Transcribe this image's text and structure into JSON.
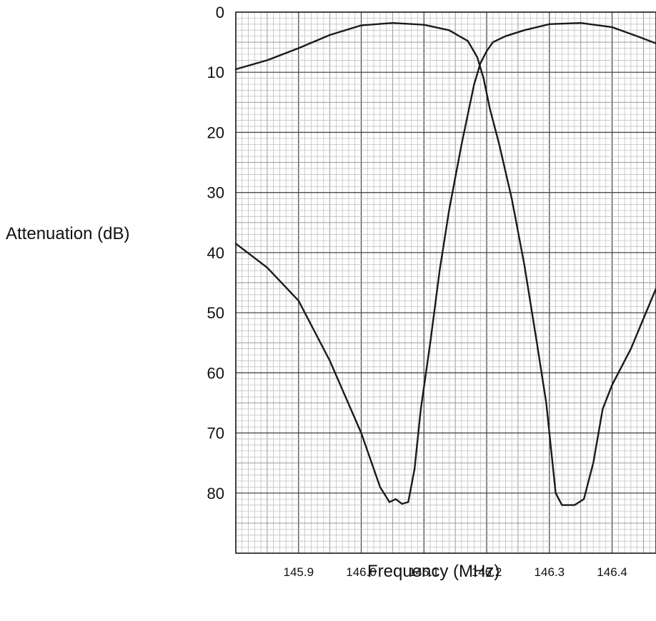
{
  "chart_data": {
    "type": "line",
    "title": "",
    "xlabel": "Frequency (MHz)",
    "ylabel": "Attenuation (dB)",
    "xlim": [
      145.8,
      146.47
    ],
    "ylim": [
      0,
      90
    ],
    "y_inverted": true,
    "grid": true,
    "legend": "none",
    "x_ticks": [
      "145.9",
      "146.0",
      "146.1",
      "146.2",
      "146.3",
      "146.4"
    ],
    "y_ticks": [
      "0",
      "10",
      "20",
      "30",
      "40",
      "50",
      "60",
      "70",
      "80"
    ],
    "series": [
      {
        "points": [
          [
            145.8,
            9.5
          ],
          [
            145.85,
            8.0
          ],
          [
            145.9,
            6.0
          ],
          [
            145.95,
            3.8
          ],
          [
            146.0,
            2.2
          ],
          [
            146.05,
            1.8
          ],
          [
            146.1,
            2.1
          ],
          [
            146.14,
            3.0
          ],
          [
            146.17,
            4.8
          ],
          [
            146.185,
            7.5
          ],
          [
            146.195,
            11.0
          ],
          [
            146.205,
            16.0
          ],
          [
            146.22,
            22.0
          ],
          [
            146.24,
            31.0
          ],
          [
            146.26,
            42.0
          ],
          [
            146.28,
            55.0
          ],
          [
            146.295,
            65.0
          ],
          [
            146.305,
            75.0
          ],
          [
            146.31,
            80.0
          ],
          [
            146.32,
            82.0
          ],
          [
            146.34,
            82.0
          ],
          [
            146.355,
            81.0
          ],
          [
            146.37,
            75.0
          ],
          [
            146.385,
            66.0
          ],
          [
            146.4,
            62.0
          ],
          [
            146.43,
            56.0
          ],
          [
            146.45,
            51.0
          ],
          [
            146.47,
            46.0
          ]
        ]
      },
      {
        "points": [
          [
            145.8,
            38.5
          ],
          [
            145.85,
            42.5
          ],
          [
            145.9,
            48.0
          ],
          [
            145.95,
            58.0
          ],
          [
            146.0,
            70.0
          ],
          [
            146.03,
            79.0
          ],
          [
            146.045,
            81.5
          ],
          [
            146.055,
            81.0
          ],
          [
            146.065,
            81.8
          ],
          [
            146.075,
            81.5
          ],
          [
            146.085,
            76.0
          ],
          [
            146.095,
            66.0
          ],
          [
            146.11,
            55.0
          ],
          [
            146.125,
            43.0
          ],
          [
            146.14,
            33.0
          ],
          [
            146.16,
            22.0
          ],
          [
            146.18,
            12.0
          ],
          [
            146.19,
            8.5
          ],
          [
            146.2,
            6.5
          ],
          [
            146.21,
            5.0
          ],
          [
            146.23,
            4.0
          ],
          [
            146.26,
            3.0
          ],
          [
            146.3,
            2.0
          ],
          [
            146.35,
            1.8
          ],
          [
            146.4,
            2.5
          ],
          [
            146.44,
            4.0
          ],
          [
            146.47,
            5.2
          ]
        ]
      }
    ]
  }
}
